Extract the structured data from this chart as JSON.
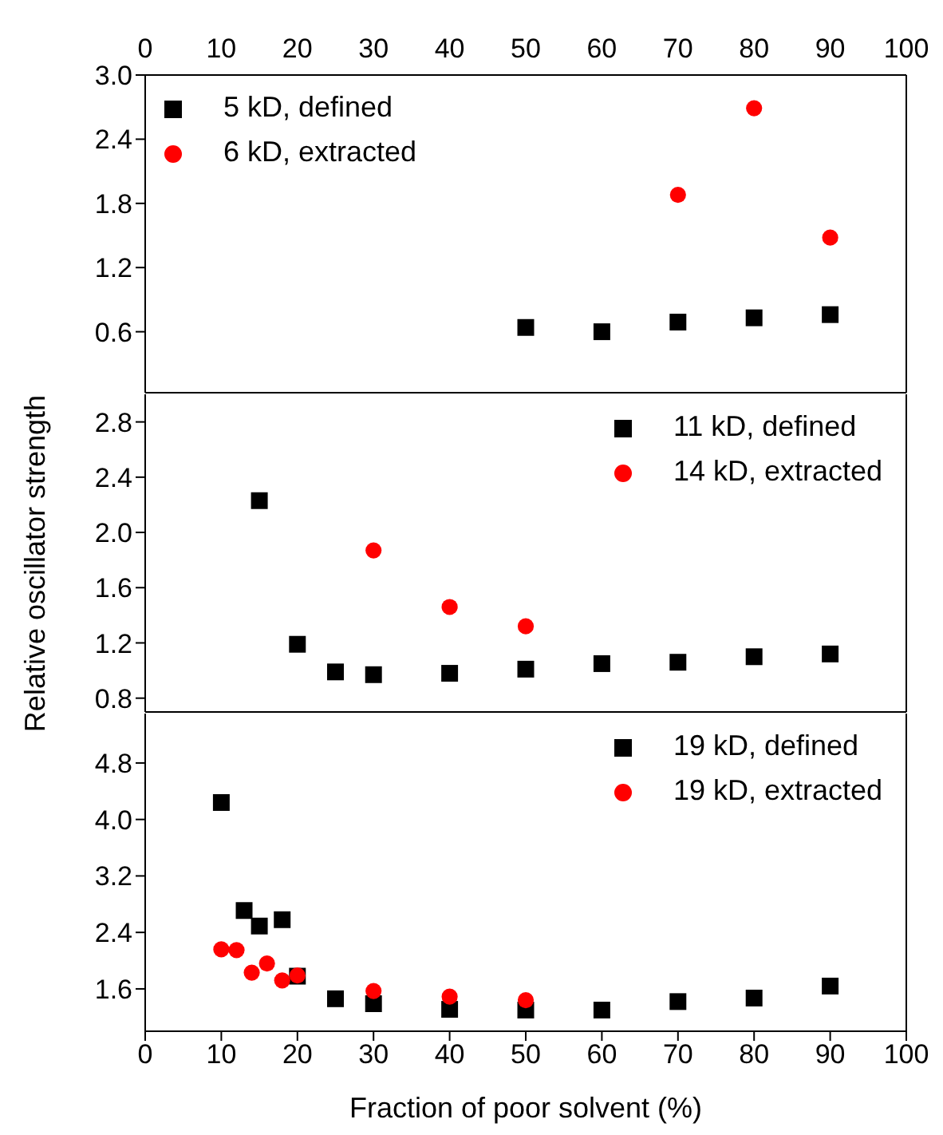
{
  "chart_data": [
    {
      "type": "scatter",
      "xlim": [
        0,
        100
      ],
      "xticks": [
        0,
        10,
        20,
        30,
        40,
        50,
        60,
        70,
        80,
        90,
        100
      ],
      "x2lim": [
        0,
        100
      ],
      "x2ticks": [
        0,
        10,
        20,
        30,
        40,
        50,
        60,
        70,
        80,
        90,
        100
      ],
      "ylim": [
        0.03,
        3.0
      ],
      "yticks": [
        {
          "value": 0.6,
          "label": "0.6"
        },
        {
          "value": 1.2,
          "label": "1.2"
        },
        {
          "value": 1.8,
          "label": "1.8"
        },
        {
          "value": 2.4,
          "label": "2.4"
        },
        {
          "value": 3,
          "label": "3.0"
        }
      ],
      "tick_labels": "y",
      "grid": false,
      "legend": "top left",
      "series": [
        {
          "name": "5 kD, defined",
          "color": "#000000",
          "marker": "square",
          "x": [
            50,
            60,
            70,
            80,
            90
          ],
          "values": [
            0.64,
            0.6,
            0.69,
            0.73,
            0.76
          ]
        },
        {
          "name": "6 kD, extracted",
          "color": "#ff0000",
          "marker": "circle",
          "x": [
            70,
            80,
            90
          ],
          "values": [
            1.88,
            2.69,
            1.48
          ]
        }
      ]
    },
    {
      "type": "scatter",
      "ylabel": "Relative oscillator strength",
      "xlim": [
        0,
        100
      ],
      "xticks": [
        0,
        10,
        20,
        30,
        40,
        50,
        60,
        70,
        80,
        90,
        100
      ],
      "ylim": [
        0.7,
        3.0
      ],
      "yticks": [
        {
          "value": 0.8,
          "label": "0.8"
        },
        {
          "value": 1.2,
          "label": "1.2"
        },
        {
          "value": 1.6,
          "label": "1.6"
        },
        {
          "value": 2,
          "label": "2.0"
        },
        {
          "value": 2.4,
          "label": "2.4"
        },
        {
          "value": 2.8,
          "label": "2.8"
        }
      ],
      "tick_labels": "y",
      "grid": false,
      "legend": "top right",
      "series": [
        {
          "name": "11 kD, defined",
          "color": "#000000",
          "marker": "square",
          "x": [
            15,
            20,
            25,
            30,
            40,
            50,
            60,
            70,
            80,
            90
          ],
          "values": [
            2.23,
            1.19,
            0.99,
            0.97,
            0.98,
            1.01,
            1.05,
            1.06,
            1.1,
            1.12
          ]
        },
        {
          "name": "14 kD, extracted",
          "color": "#ff0000",
          "marker": "circle",
          "x": [
            30,
            40,
            50
          ],
          "values": [
            1.87,
            1.46,
            1.32
          ]
        }
      ]
    },
    {
      "type": "scatter",
      "xlabel": "Fraction of poor solvent (%)",
      "xlim": [
        0,
        100
      ],
      "xticks": [
        0,
        10,
        20,
        30,
        40,
        50,
        60,
        70,
        80,
        90,
        100
      ],
      "ylim": [
        1.0,
        5.5
      ],
      "yticks": [
        {
          "value": 1.6,
          "label": "1.6"
        },
        {
          "value": 2.4,
          "label": "2.4"
        },
        {
          "value": 3.2,
          "label": "3.2"
        },
        {
          "value": 4,
          "label": "4.0"
        },
        {
          "value": 4.8,
          "label": "4.8"
        }
      ],
      "grid": false,
      "legend": "top right",
      "series": [
        {
          "name": "19 kD, defined",
          "color": "#000000",
          "marker": "square",
          "x": [
            10,
            13,
            15,
            18,
            20,
            25,
            30,
            40,
            50,
            60,
            70,
            80,
            90
          ],
          "values": [
            4.24,
            2.71,
            2.49,
            2.58,
            1.78,
            1.46,
            1.39,
            1.31,
            1.3,
            1.3,
            1.42,
            1.47,
            1.64
          ]
        },
        {
          "name": "19 kD, extracted",
          "color": "#ff0000",
          "marker": "circle",
          "x": [
            10,
            12,
            14,
            16,
            18,
            20,
            30,
            40,
            50
          ],
          "values": [
            2.16,
            2.15,
            1.83,
            1.96,
            1.72,
            1.79,
            1.57,
            1.49,
            1.44
          ]
        }
      ]
    }
  ]
}
